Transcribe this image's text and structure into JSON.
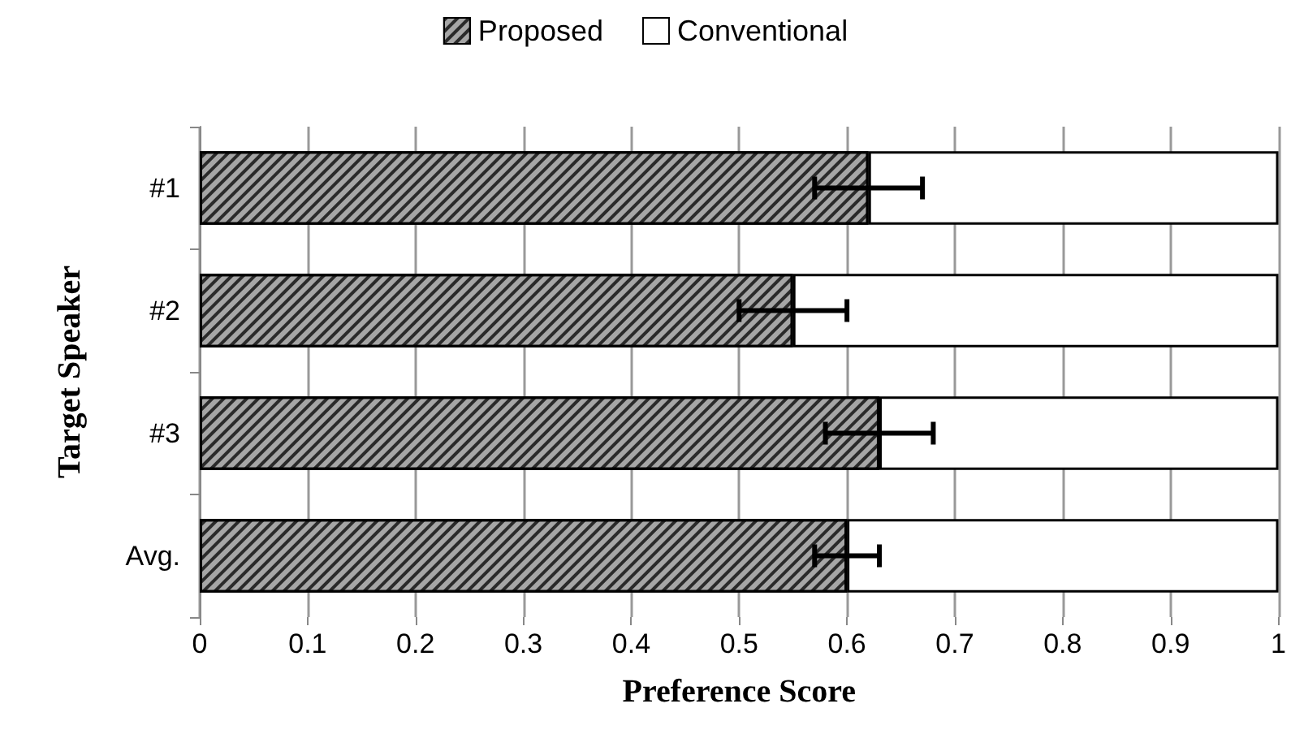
{
  "chart_data": {
    "type": "bar",
    "orientation": "horizontal",
    "stacked": true,
    "xlabel": "Preference Score",
    "ylabel": "Target Speaker",
    "categories": [
      "#1",
      "#2",
      "#3",
      "Avg."
    ],
    "series": [
      {
        "name": "Proposed",
        "color": "#a6a6a6",
        "values": [
          0.62,
          0.55,
          0.63,
          0.6
        ],
        "errors": [
          0.05,
          0.05,
          0.05,
          0.03
        ]
      },
      {
        "name": "Conventional",
        "color": "#ffffff",
        "values": [
          0.38,
          0.45,
          0.37,
          0.4
        ]
      }
    ],
    "xlim": [
      0,
      1
    ],
    "xticks": [
      0,
      0.1,
      0.2,
      0.3,
      0.4,
      0.5,
      0.6,
      0.7,
      0.8,
      0.9,
      1
    ],
    "grid": "x",
    "legend": "top"
  }
}
